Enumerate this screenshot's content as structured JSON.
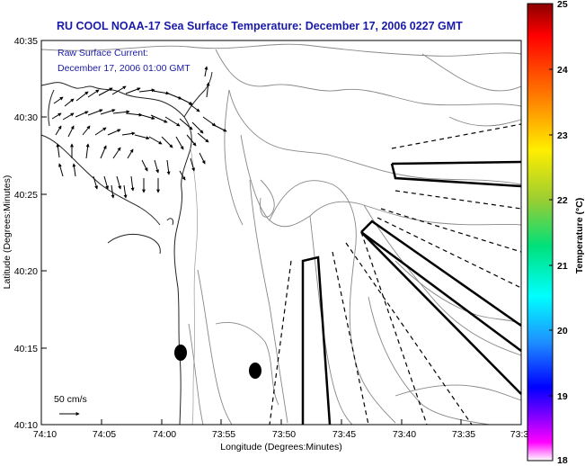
{
  "title": "RU COOL  NOAA-17  Sea Surface Temperature:  December 17, 2006 0227 GMT",
  "current_note": {
    "line1": "Raw Surface Current:",
    "line2": "December 17, 2006 01:00 GMT"
  },
  "scale_label": "50 cm/s",
  "x_axis": {
    "label": "Longitude (Degrees:Minutes)",
    "ticks": [
      "74:10",
      "74:05",
      "74:00",
      "73:55",
      "73:50",
      "73:45",
      "73:40",
      "73:35",
      "73:3"
    ]
  },
  "y_axis": {
    "label": "Latitude (Degrees:Minutes)",
    "ticks": [
      "40:35",
      "40:30",
      "40:25",
      "40:20",
      "40:15",
      "40:10"
    ]
  },
  "colorbar": {
    "label": "Temperature (°C)",
    "ticks": [
      "25",
      "24",
      "23",
      "22",
      "21",
      "20",
      "19",
      "18"
    ],
    "colors": [
      "#8b0000",
      "#ff0000",
      "#ff8c00",
      "#ffff00",
      "#9acd32",
      "#00ff7f",
      "#00ffff",
      "#1e90ff",
      "#0000ff",
      "#7b00ff",
      "#ff00ff",
      "#ffffff"
    ]
  }
}
